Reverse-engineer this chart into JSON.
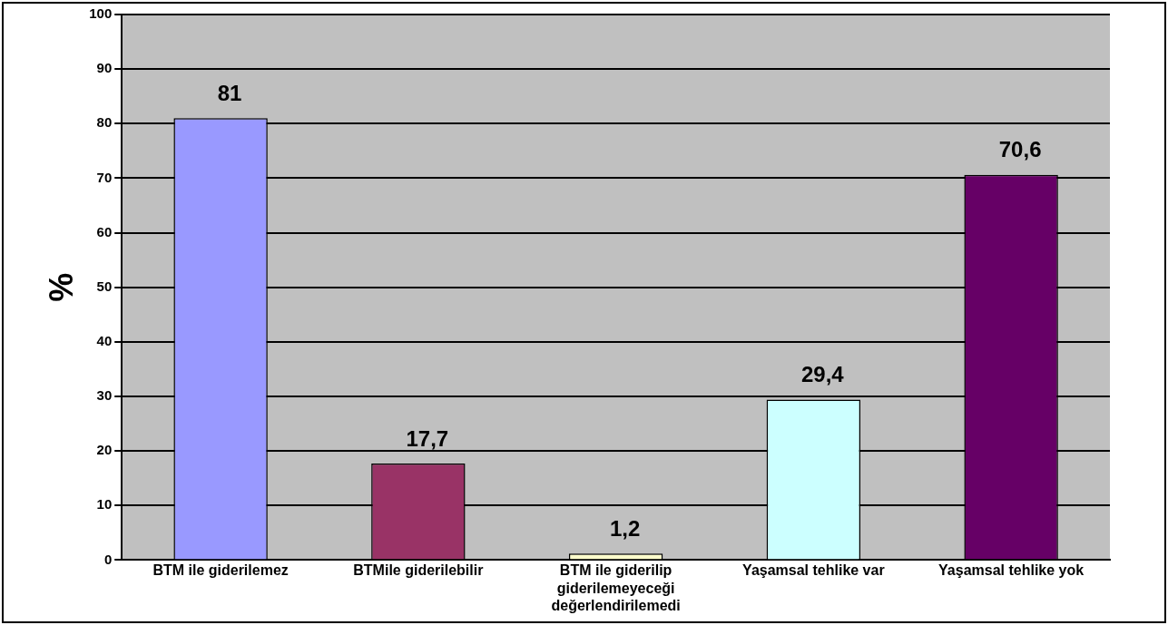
{
  "chart_data": {
    "type": "bar",
    "ylabel": "%",
    "categories": [
      "BTM ile giderilemez",
      "BTMile giderilebilir",
      "BTM ile giderilip giderilemeyeceği değerlendirilemedi",
      "Yaşamsal tehlike var",
      "Yaşamsal tehlike yok"
    ],
    "values": [
      81,
      17.7,
      1.2,
      29.4,
      70.6
    ],
    "colors": [
      "#9999ff",
      "#993366",
      "#ffffcc",
      "#ccffff",
      "#660066"
    ],
    "value_labels": [
      "81",
      "17,7",
      "1,2",
      "29,4",
      "70,6"
    ],
    "ylim": [
      0,
      100
    ],
    "yticks": [
      0,
      10,
      20,
      30,
      40,
      50,
      60,
      70,
      80,
      90,
      100
    ],
    "grid": "y",
    "legend": false
  }
}
